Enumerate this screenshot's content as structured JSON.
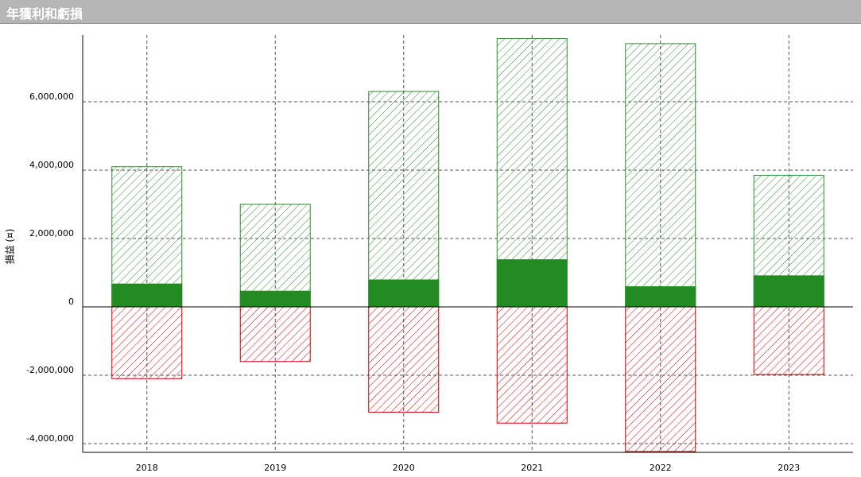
{
  "window": {
    "title": "年獲利和虧損"
  },
  "colors": {
    "profit_solid": "#228B22",
    "profit_hatch": "#2e8b2e",
    "loss_hatch": "#cc0000",
    "grid": "#555555",
    "axis": "#000000"
  },
  "chart_data": {
    "type": "bar",
    "title": "年獲利和虧損",
    "xlabel": "",
    "ylabel": "損益 (¤)",
    "categories": [
      "2018",
      "2019",
      "2020",
      "2021",
      "2022",
      "2023"
    ],
    "series": [
      {
        "style": "hatched",
        "color": "#2e8b2e",
        "values": [
          4100000,
          3000000,
          6300000,
          7850000,
          7700000,
          3850000
        ]
      },
      {
        "style": "solid",
        "color": "#228B22",
        "values": [
          670000,
          460000,
          790000,
          1380000,
          590000,
          910000
        ]
      },
      {
        "style": "hatched",
        "color": "#cc0000",
        "values": [
          -2100000,
          -1600000,
          -3080000,
          -3400000,
          -4230000,
          -1980000
        ]
      }
    ],
    "yticks": [
      -4000000,
      -2000000,
      0,
      2000000,
      4000000,
      6000000
    ],
    "ytick_labels": [
      "-4,000,000",
      "-2,000,000",
      "0",
      "2,000,000",
      "4,000,000",
      "6,000,000"
    ],
    "ylim": [
      -4250000,
      7900000
    ],
    "grid": true,
    "legend": "none"
  }
}
